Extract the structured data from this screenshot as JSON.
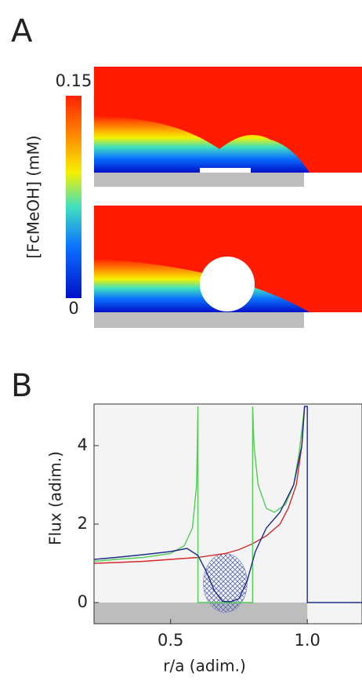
{
  "panel_a": {
    "label": "A",
    "colorbar": {
      "label": "[FcMeOH] (mM)",
      "max": 0.15,
      "min": 0
    }
  },
  "chart_data": {
    "type": "line",
    "panel_label": "B",
    "xlabel": "r/a (adim.)",
    "ylabel": "Flux (adim.)",
    "xlim": [
      0.22,
      1.2
    ],
    "ylim": [
      -0.54,
      5.06
    ],
    "xticks": [
      0.5,
      {
        "value": 1.0,
        "label": "1.0"
      }
    ],
    "yticks": [
      0,
      2,
      4
    ],
    "series": [
      {
        "color": "#d42a2a",
        "x": [
          0.22,
          0.3,
          0.4,
          0.5,
          0.6,
          0.7,
          0.75,
          0.8,
          0.85,
          0.9,
          0.93,
          0.96,
          0.98,
          0.99
        ],
        "values": [
          1.0,
          1.02,
          1.05,
          1.1,
          1.15,
          1.25,
          1.35,
          1.5,
          1.7,
          2.0,
          2.4,
          3.0,
          4.0,
          5.0
        ]
      },
      {
        "color": "#55cc55",
        "x": [
          0.22,
          0.3,
          0.4,
          0.5,
          0.55,
          0.58,
          0.595,
          0.6,
          0.6,
          0.8,
          0.8,
          0.805,
          0.82,
          0.85,
          0.88,
          0.92,
          0.95,
          0.97,
          0.99
        ],
        "values": [
          1.05,
          1.1,
          1.15,
          1.25,
          1.45,
          1.9,
          3.0,
          5.0,
          0,
          0,
          5.0,
          4.0,
          3.0,
          2.4,
          2.3,
          2.5,
          3.0,
          3.8,
          5.0
        ]
      },
      {
        "color": "#1c2c8c",
        "x": [
          0.22,
          0.3,
          0.4,
          0.5,
          0.56,
          0.6,
          0.63,
          0.66,
          0.69,
          0.72,
          0.75,
          0.78,
          0.81,
          0.85,
          0.9,
          0.95,
          0.98,
          0.99,
          1.0,
          1.0,
          1.2
        ],
        "values": [
          1.1,
          1.15,
          1.22,
          1.3,
          1.38,
          1.2,
          0.8,
          0.3,
          0.03,
          0.02,
          0.1,
          0.55,
          1.3,
          1.9,
          2.3,
          3.0,
          4.0,
          5.0,
          5.0,
          0,
          0
        ]
      }
    ]
  }
}
